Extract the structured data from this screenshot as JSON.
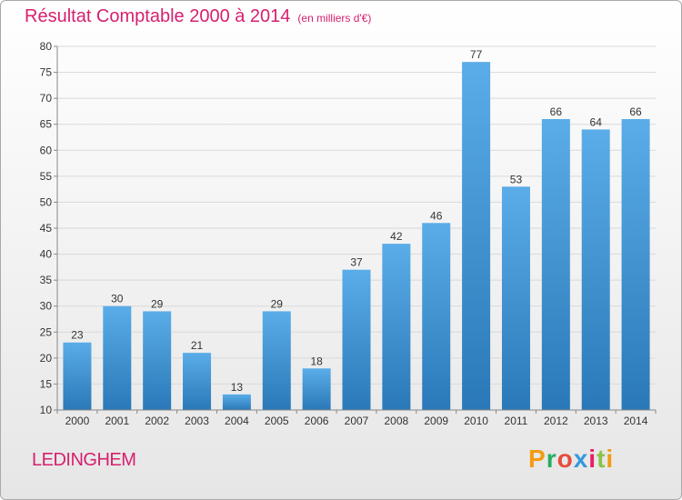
{
  "header": {
    "title": "Résultat Comptable 2000 à 2014",
    "subtitle": "(en milliers d'€)"
  },
  "footer": {
    "place": "LEDINGHEM",
    "brand": "Proxiti",
    "brand_letter_colors": [
      "#f39c12",
      "#27ae60",
      "#e74c3c",
      "#3498db",
      "#e91e63",
      "#8bc34a",
      "#f39c12"
    ]
  },
  "colors": {
    "accent": "#d6206f",
    "bar_top": "#5aade8",
    "bar_bottom": "#2a78b8"
  },
  "chart_data": {
    "type": "bar",
    "categories": [
      "2000",
      "2001",
      "2002",
      "2003",
      "2004",
      "2005",
      "2006",
      "2007",
      "2008",
      "2009",
      "2010",
      "2011",
      "2012",
      "2013",
      "2014"
    ],
    "values": [
      23,
      30,
      29,
      21,
      13,
      29,
      18,
      37,
      42,
      46,
      77,
      53,
      66,
      64,
      66
    ],
    "title": "Résultat Comptable 2000 à 2014",
    "ylim": [
      10,
      80
    ],
    "yticks": [
      10,
      15,
      20,
      25,
      30,
      35,
      40,
      45,
      50,
      55,
      60,
      65,
      70,
      75,
      80
    ],
    "grid": true
  }
}
